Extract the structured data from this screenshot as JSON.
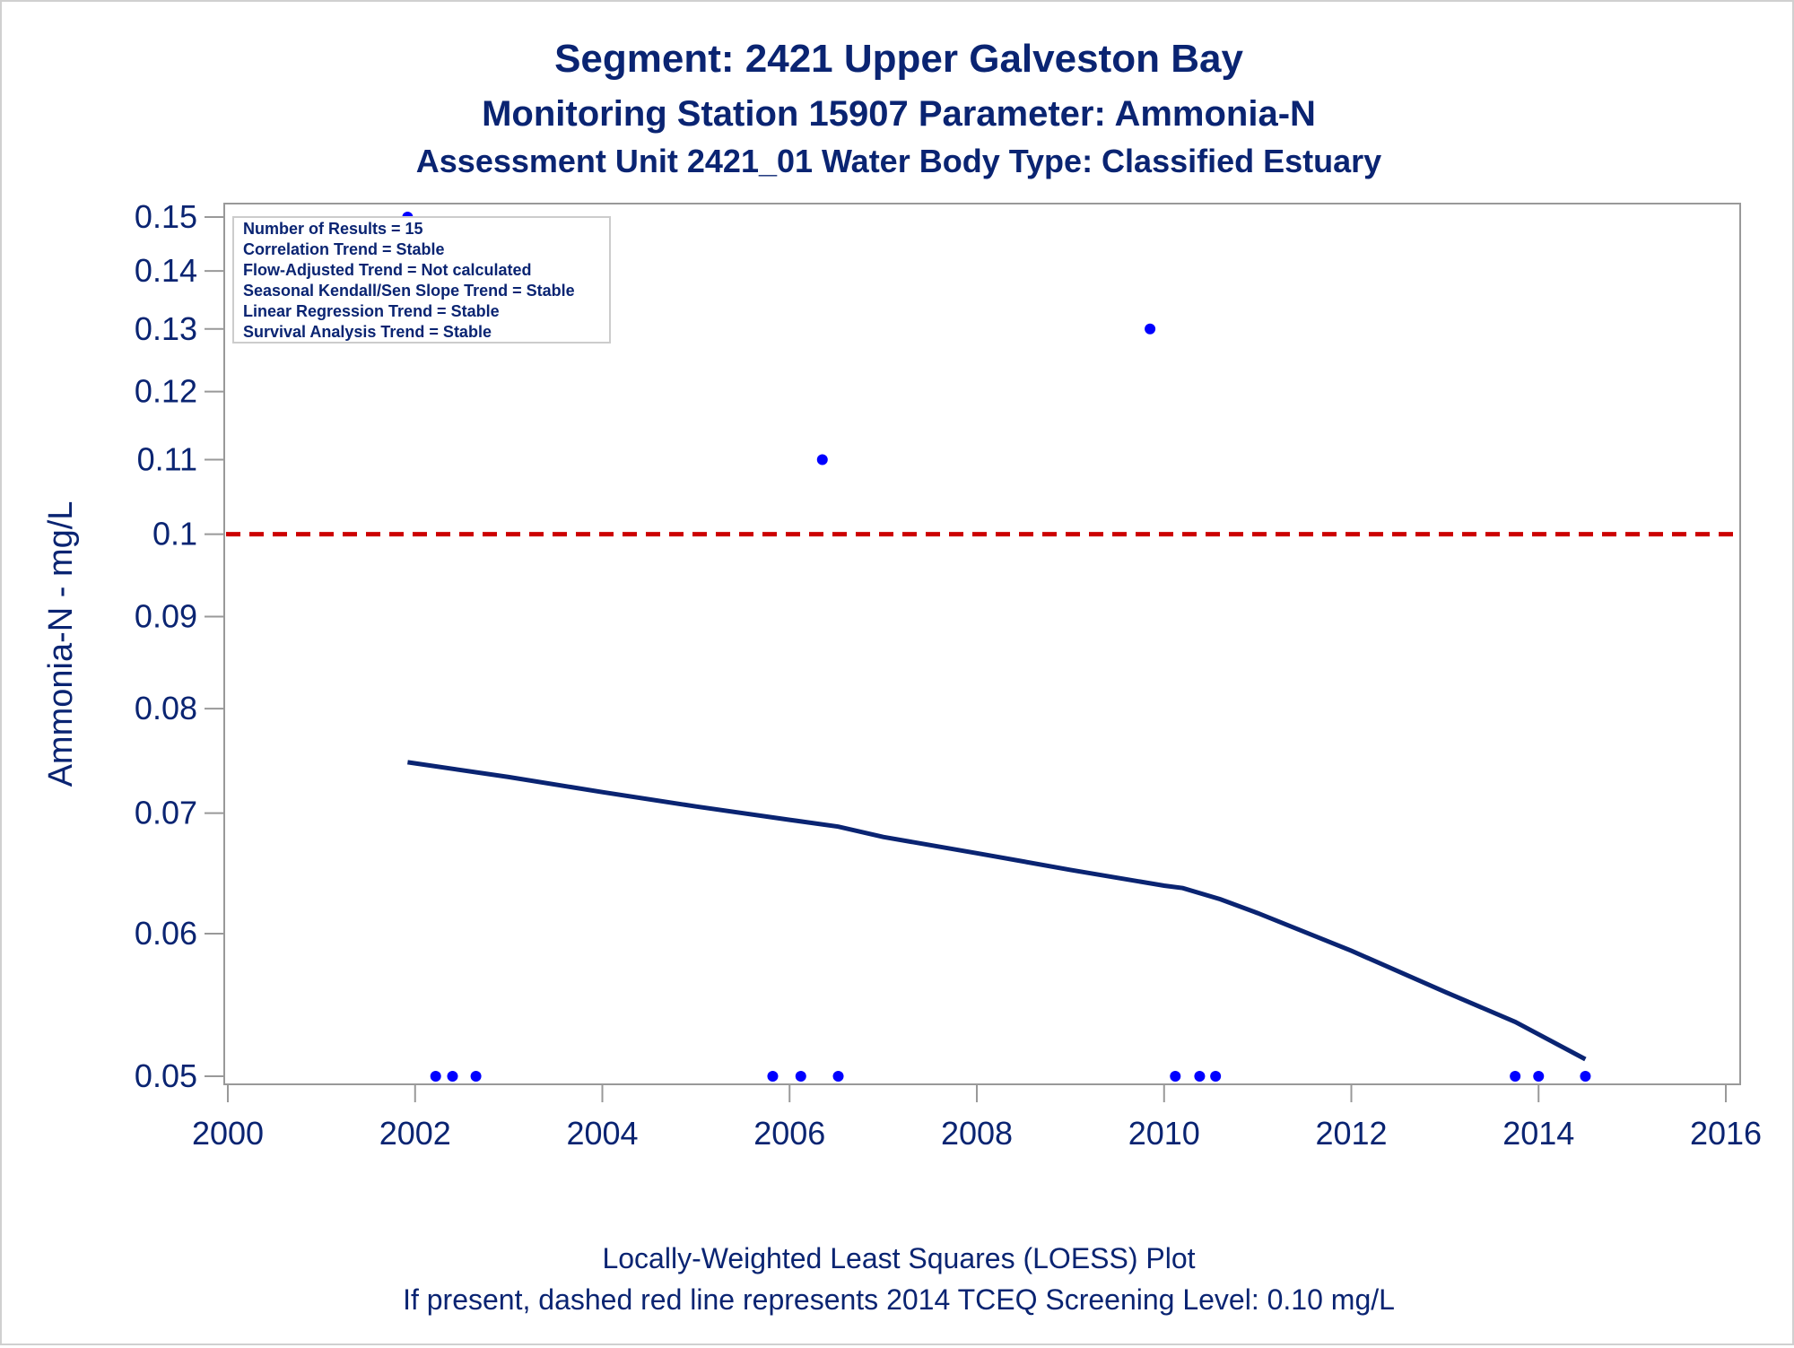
{
  "chart_data": {
    "type": "scatter",
    "title": "Segment: 2421  Upper Galveston Bay",
    "subtitle": "Monitoring Station 15907 Parameter: Ammonia-N",
    "subtitle2": "Assessment Unit 2421_01   Water Body Type: Classified Estuary",
    "xlabel": "",
    "ylabel": "Ammonia-N - mg/L",
    "y_scale": "log",
    "xlim": [
      2000,
      2016
    ],
    "ylim": [
      0.049,
      0.15
    ],
    "x_ticks": [
      2000,
      2002,
      2004,
      2006,
      2008,
      2010,
      2012,
      2014,
      2016
    ],
    "y_ticks": [
      0.05,
      0.06,
      0.07,
      0.08,
      0.09,
      0.1,
      0.11,
      0.12,
      0.13,
      0.14,
      0.15
    ],
    "x_tick_labels": [
      "2000",
      "2002",
      "2004",
      "2006",
      "2008",
      "2010",
      "2012",
      "2014",
      "2016"
    ],
    "y_tick_labels": [
      "0.05",
      "0.06",
      "0.07",
      "0.08",
      "0.09",
      "0.1",
      "0.11",
      "0.12",
      "0.13",
      "0.14",
      "0.15"
    ],
    "grid": false,
    "points": [
      {
        "x": 2001.92,
        "y": 0.15
      },
      {
        "x": 2002.22,
        "y": 0.05
      },
      {
        "x": 2002.4,
        "y": 0.05
      },
      {
        "x": 2002.65,
        "y": 0.05
      },
      {
        "x": 2005.82,
        "y": 0.05
      },
      {
        "x": 2006.12,
        "y": 0.05
      },
      {
        "x": 2006.35,
        "y": 0.11
      },
      {
        "x": 2006.52,
        "y": 0.05
      },
      {
        "x": 2009.85,
        "y": 0.13
      },
      {
        "x": 2010.12,
        "y": 0.05
      },
      {
        "x": 2010.38,
        "y": 0.05
      },
      {
        "x": 2010.55,
        "y": 0.05
      },
      {
        "x": 2013.75,
        "y": 0.05
      },
      {
        "x": 2014.0,
        "y": 0.05
      },
      {
        "x": 2014.5,
        "y": 0.05
      }
    ],
    "loess": {
      "x": [
        2001.92,
        2003,
        2004,
        2005,
        2006,
        2006.52,
        2007,
        2008,
        2009,
        2010,
        2010.2,
        2010.6,
        2011,
        2012,
        2013,
        2013.75,
        2014.5
      ],
      "y": [
        0.0747,
        0.0733,
        0.0719,
        0.0706,
        0.0694,
        0.0688,
        0.0679,
        0.0665,
        0.0651,
        0.0638,
        0.0636,
        0.0627,
        0.0616,
        0.0587,
        0.0557,
        0.0536,
        0.0511
      ]
    },
    "screening_level": {
      "y": 0.1
    },
    "colors": {
      "points": "#0000ff",
      "loess": "#0a2472",
      "screening": "#cc0000",
      "text": "#0a2472",
      "axis": "#999999"
    },
    "stats_box": [
      "Number of Results = 15",
      "Correlation Trend = Stable",
      "Flow-Adjusted Trend = Not calculated",
      "Seasonal Kendall/Sen Slope Trend = Stable",
      "Linear Regression Trend = Stable",
      "Survival Analysis Trend = Stable"
    ],
    "footer": [
      "Locally-Weighted Least Squares (LOESS) Plot",
      "If present, dashed red line represents 2014 TCEQ Screening Level: 0.10 mg/L"
    ]
  }
}
